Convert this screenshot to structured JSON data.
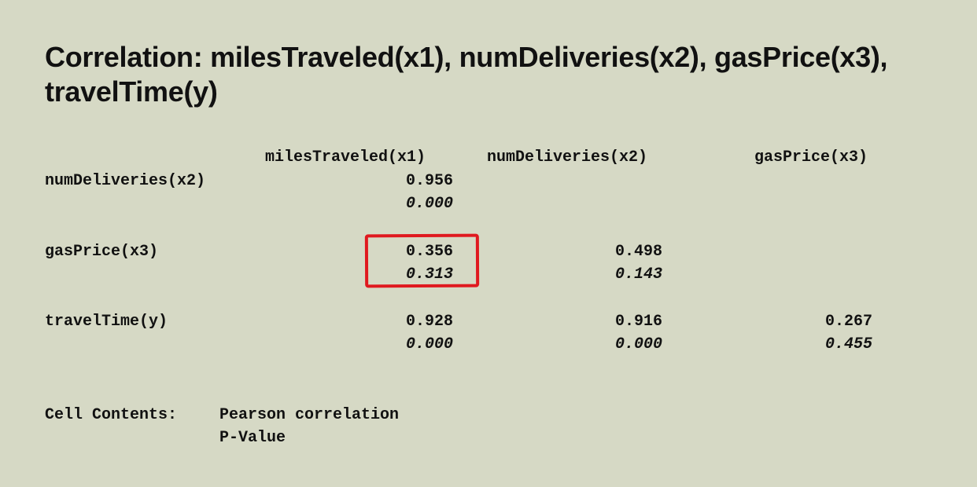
{
  "title": "Correlation: milesTraveled(x1), numDeliveries(x2), gasPrice(x3), travelTime(y)",
  "table": {
    "columns": [
      "milesTraveled(x1)",
      "numDeliveries(x2)",
      "gasPrice(x3)"
    ],
    "rows": [
      {
        "label": "numDeliveries(x2)",
        "cells": [
          {
            "r": "0.956",
            "p": "0.000"
          }
        ]
      },
      {
        "label": "gasPrice(x3)",
        "cells": [
          {
            "r": "0.356",
            "p": "0.313"
          },
          {
            "r": "0.498",
            "p": "0.143"
          }
        ]
      },
      {
        "label": "travelTime(y)",
        "cells": [
          {
            "r": "0.928",
            "p": "0.000"
          },
          {
            "r": "0.916",
            "p": "0.000"
          },
          {
            "r": "0.267",
            "p": "0.455"
          }
        ]
      }
    ]
  },
  "legend": {
    "label": "Cell Contents:",
    "line1": "Pearson correlation",
    "line2": "P-Value"
  },
  "highlight_color": "#e0191f"
}
